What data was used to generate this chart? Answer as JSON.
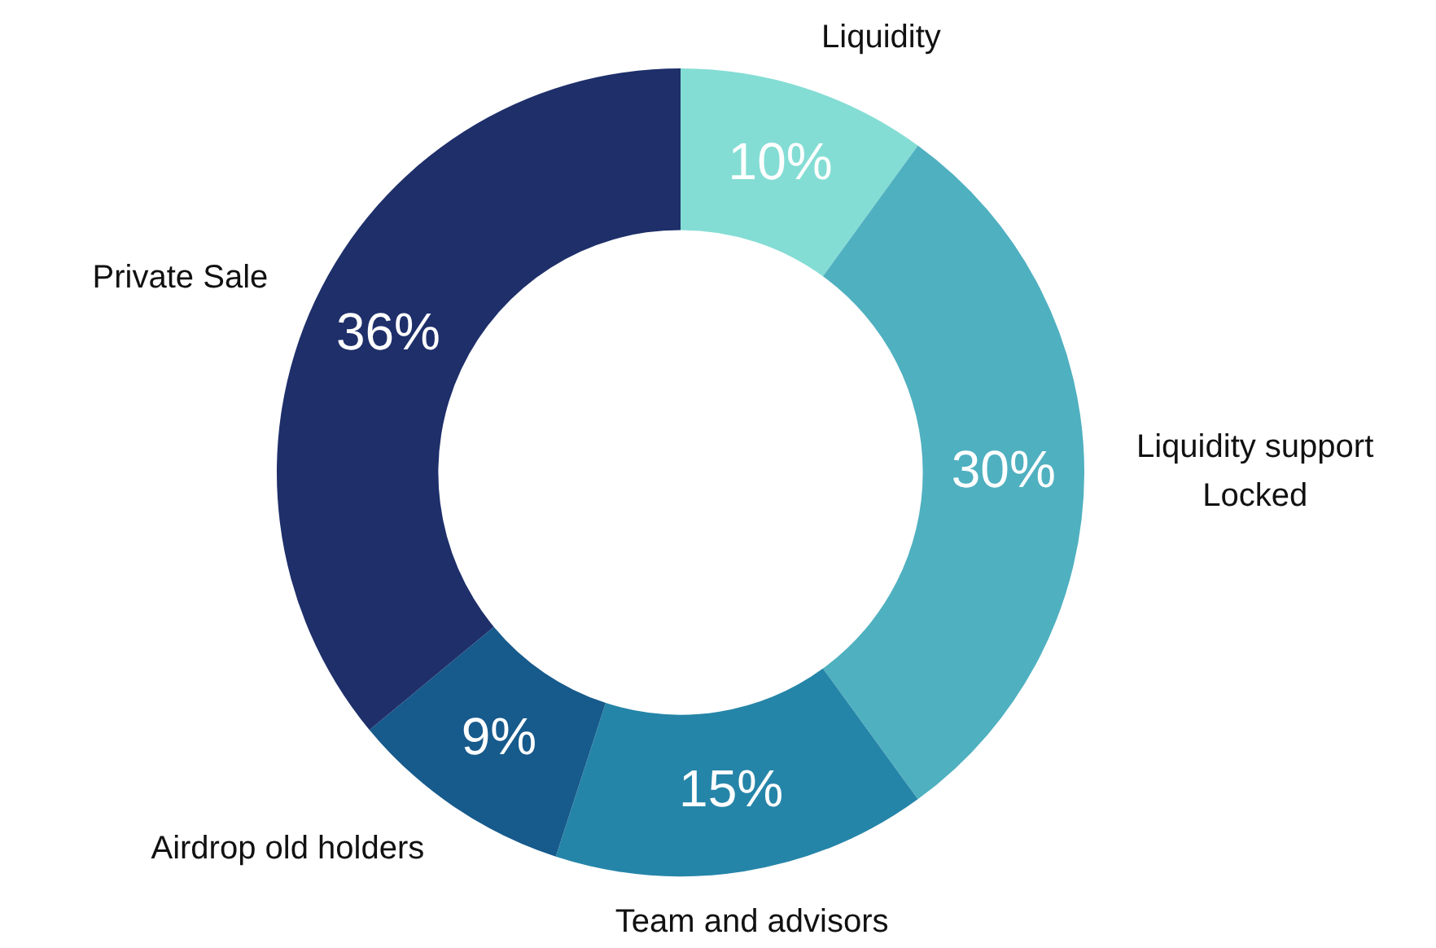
{
  "chart_data": {
    "type": "donut",
    "categories": [
      "Liquidity",
      "Liquidity support Locked",
      "Team and advisors",
      "Airdrop old holders",
      "Private Sale"
    ],
    "values": [
      10,
      30,
      15,
      9,
      36
    ],
    "value_labels": [
      "10%",
      "30%",
      "15%",
      "9%",
      "36%"
    ],
    "colors": [
      "#84ddd4",
      "#4fb0c0",
      "#2585a8",
      "#175a8c",
      "#1e2f6a"
    ],
    "legend": false
  }
}
